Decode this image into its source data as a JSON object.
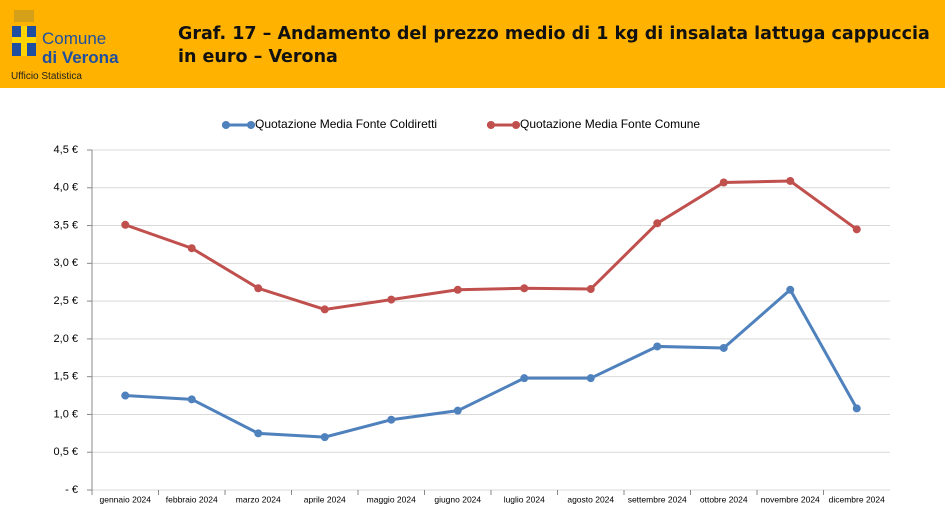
{
  "header": {
    "logo_line1": "Comune",
    "logo_line2": "di Verona",
    "logo_line3": "Ufficio Statistica"
  },
  "chart_data": {
    "type": "line",
    "title": "Graf. 17 – Andamento del prezzo medio di 1 kg di insalata lattuga cappuccia in euro – Verona",
    "categories": [
      "gennaio 2024",
      "febbraio 2024",
      "marzo 2024",
      "aprile 2024",
      "maggio 2024",
      "giugno 2024",
      "luglio 2024",
      "agosto 2024",
      "settembre 2024",
      "ottobre 2024",
      "novembre 2024",
      "dicembre 2024"
    ],
    "series": [
      {
        "name": "Quotazione Media Fonte Coldiretti",
        "color": "#4f81bd",
        "values": [
          1.25,
          1.2,
          0.75,
          0.7,
          0.93,
          1.05,
          1.48,
          1.48,
          1.9,
          1.88,
          2.65,
          1.08
        ]
      },
      {
        "name": "Quotazione Media Fonte Comune",
        "color": "#c0504d",
        "values": [
          3.51,
          3.2,
          2.67,
          2.39,
          2.52,
          2.65,
          2.67,
          2.66,
          3.53,
          4.07,
          4.09,
          3.45
        ]
      }
    ],
    "ylim": [
      0,
      4.5
    ],
    "yticks": [
      {
        "value": 0,
        "label": "- €"
      },
      {
        "value": 0.5,
        "label": "0,5 €"
      },
      {
        "value": 1,
        "label": "1,0 €"
      },
      {
        "value": 1.5,
        "label": "1,5 €"
      },
      {
        "value": 2,
        "label": "2,0 €"
      },
      {
        "value": 2.5,
        "label": "2,5 €"
      },
      {
        "value": 3,
        "label": "3,0 €"
      },
      {
        "value": 3.5,
        "label": "3,5 €"
      },
      {
        "value": 4,
        "label": "4,0 €"
      },
      {
        "value": 4.5,
        "label": "4,5 €"
      }
    ],
    "grid": true,
    "legend": "top"
  }
}
